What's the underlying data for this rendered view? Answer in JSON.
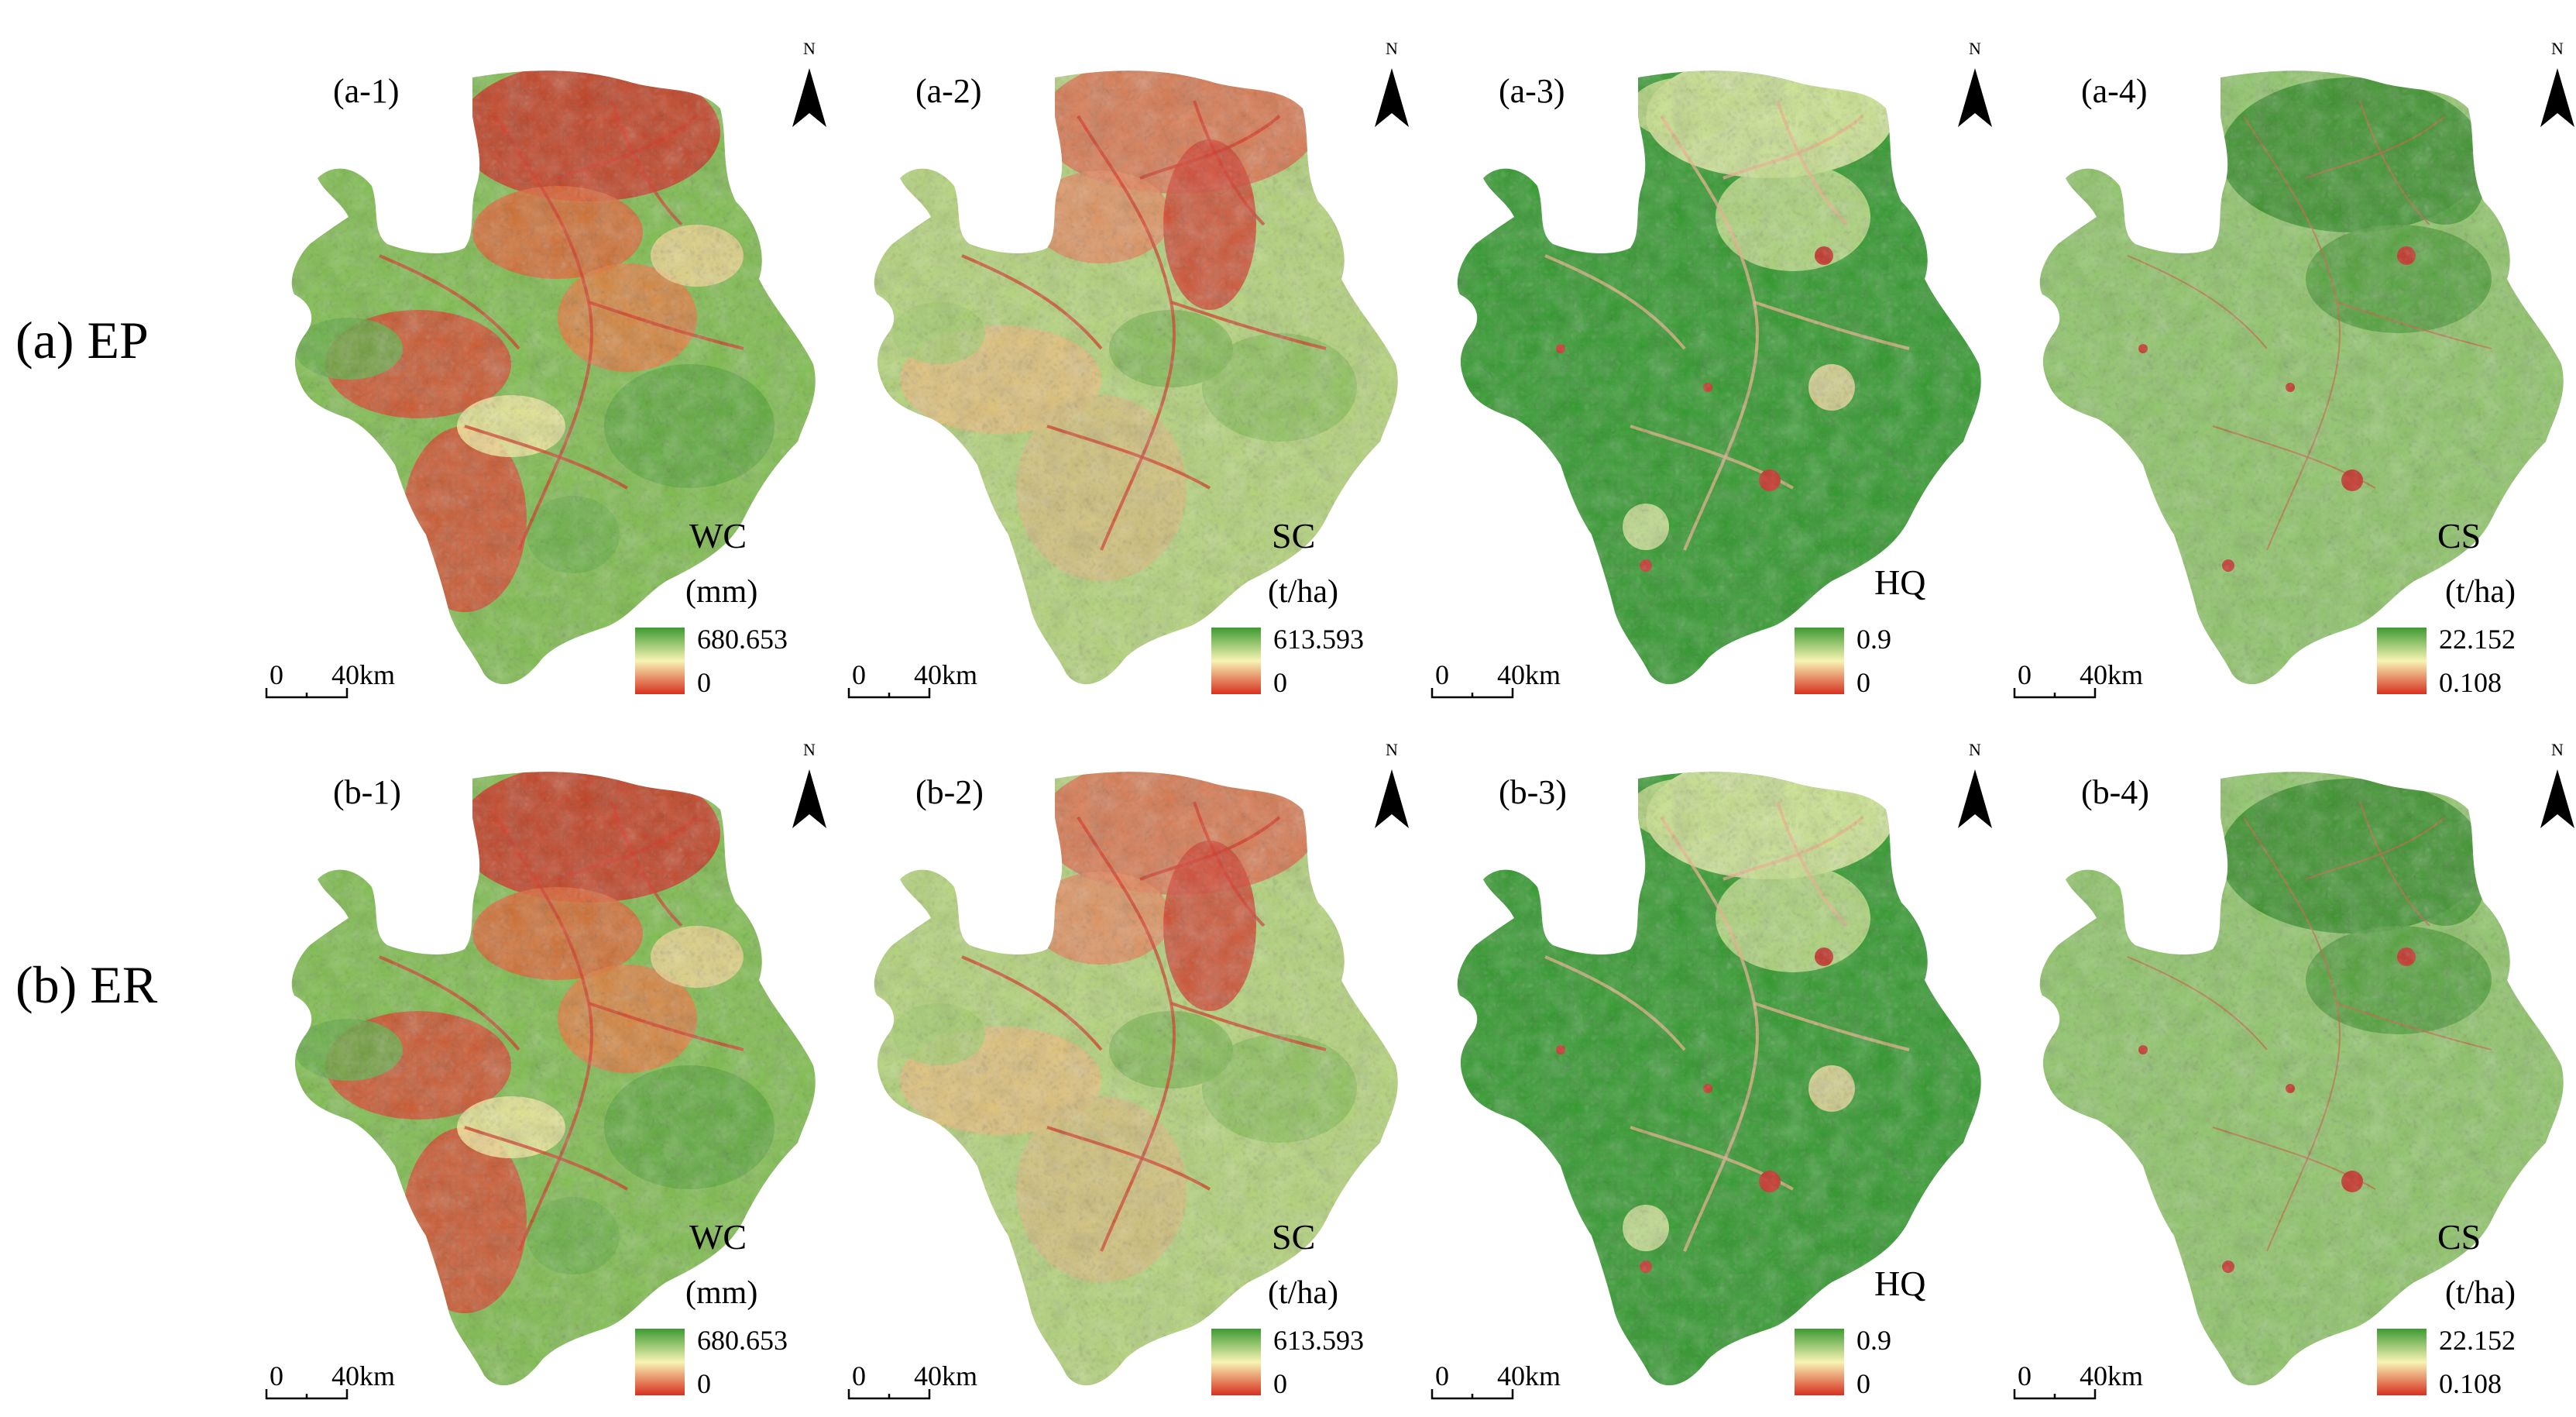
{
  "rows": [
    {
      "label": "(a) EP",
      "panels": [
        {
          "id": "a-1",
          "label": "(a-1)",
          "variable": "WC",
          "unit": "(mm)",
          "legend_max": "680.653",
          "legend_min": "0",
          "theme": "wc"
        },
        {
          "id": "a-2",
          "label": "(a-2)",
          "variable": "SC",
          "unit": "(t/ha)",
          "legend_max": "613.593",
          "legend_min": "0",
          "theme": "sc"
        },
        {
          "id": "a-3",
          "label": "(a-3)",
          "variable": "HQ",
          "unit": "",
          "legend_max": "0.9",
          "legend_min": "0",
          "theme": "hq"
        },
        {
          "id": "a-4",
          "label": "(a-4)",
          "variable": "CS",
          "unit": "(t/ha)",
          "legend_max": "22.152",
          "legend_min": "0.108",
          "theme": "cs"
        }
      ]
    },
    {
      "label": "(b) ER",
      "panels": [
        {
          "id": "b-1",
          "label": "(b-1)",
          "variable": "WC",
          "unit": "(mm)",
          "legend_max": "680.653",
          "legend_min": "0",
          "theme": "wc"
        },
        {
          "id": "b-2",
          "label": "(b-2)",
          "variable": "SC",
          "unit": "(t/ha)",
          "legend_max": "613.593",
          "legend_min": "0",
          "theme": "sc"
        },
        {
          "id": "b-3",
          "label": "(b-3)",
          "variable": "HQ",
          "unit": "",
          "legend_max": "0.9",
          "legend_min": "0",
          "theme": "hq"
        },
        {
          "id": "b-4",
          "label": "(b-4)",
          "variable": "CS",
          "unit": "(t/ha)",
          "legend_max": "22.152",
          "legend_min": "0.108",
          "theme": "cs"
        }
      ]
    }
  ],
  "north_label": "N",
  "scale": {
    "start": "0",
    "end": "40km"
  },
  "colors": {
    "low": "#d7301f",
    "mid": "#f5f0a8",
    "high": "#4aa33a",
    "dark_green": "#2e8b22",
    "light_green": "#8bc866",
    "background": "#ffffff"
  }
}
